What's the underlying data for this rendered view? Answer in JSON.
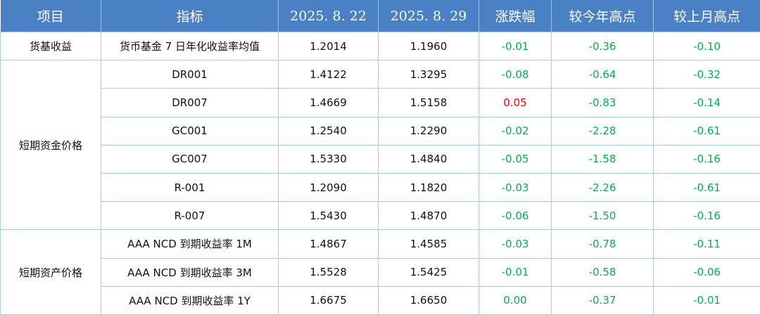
{
  "table": {
    "header": [
      "项目",
      "指标",
      "2025. 8. 22",
      "2025. 8. 29",
      "涨跌幅",
      "较今年高点",
      "较上月高点"
    ],
    "groups": [
      {
        "label": "货基收益",
        "rows": [
          [
            "货币基金 7 日年化收益率均值",
            "1.2014",
            "1.1960",
            "-0.01",
            "-0.36",
            "-0.10"
          ]
        ]
      },
      {
        "label": "短期资金价格",
        "rows": [
          [
            "DR001",
            "1.4122",
            "1.3295",
            "-0.08",
            "-0.64",
            "-0.32"
          ],
          [
            "DR007",
            "1.4669",
            "1.5158",
            "0.05",
            "-0.83",
            "-0.14"
          ],
          [
            "GC001",
            "1.2540",
            "1.2290",
            "-0.02",
            "-2.28",
            "-0.61"
          ],
          [
            "GC007",
            "1.5330",
            "1.4840",
            "-0.05",
            "-1.58",
            "-0.16"
          ],
          [
            "R-001",
            "1.2090",
            "1.1820",
            "-0.03",
            "-2.26",
            "-0.61"
          ],
          [
            "R-007",
            "1.5430",
            "1.4870",
            "-0.06",
            "-1.50",
            "-0.16"
          ]
        ]
      },
      {
        "label": "短期资产价格",
        "rows": [
          [
            "AAA NCD 到期收益率 1M",
            "1.4867",
            "1.4585",
            "-0.03",
            "-0.78",
            "-0.11"
          ],
          [
            "AAA NCD 到期收益率 3M",
            "1.5528",
            "1.5425",
            "-0.01",
            "-0.58",
            "-0.06"
          ],
          [
            "AAA NCD 到期收益率 1Y",
            "1.6675",
            "1.6650",
            "0.00",
            "-0.37",
            "-0.01"
          ]
        ]
      }
    ]
  }
}
